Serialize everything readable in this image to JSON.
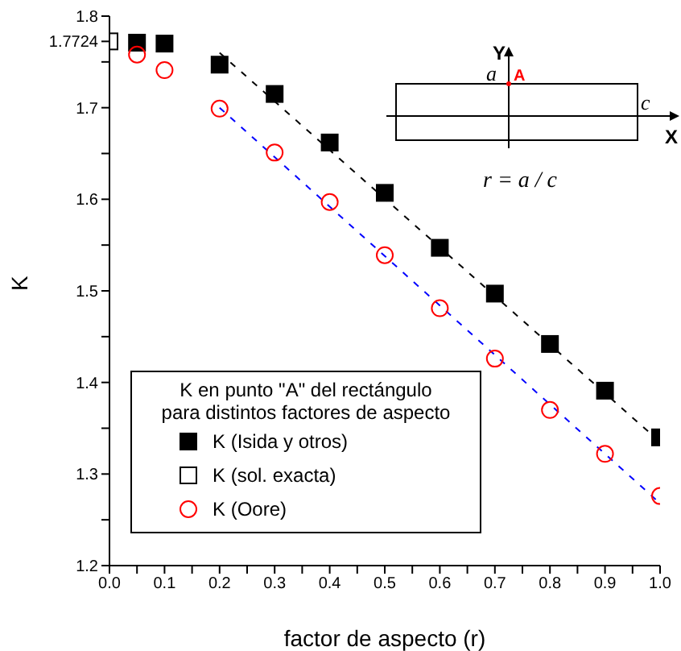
{
  "chart_data": {
    "type": "scatter",
    "xlabel": "factor de aspecto   (r)",
    "ylabel": "K",
    "legend_title": "K en punto \"A\" del rectángulo\npara distintos factores de aspecto",
    "legend": "bottom left",
    "grid": false,
    "xlim": [
      0,
      1.0
    ],
    "ylim": [
      1.2,
      1.8
    ],
    "xticks": [
      {
        "value": 0,
        "label": "0.0"
      },
      {
        "value": 0.05,
        "label": null
      },
      {
        "value": 0.1,
        "label": "0.1"
      },
      {
        "value": 0.15,
        "label": null
      },
      {
        "value": 0.2,
        "label": "0.2"
      },
      {
        "value": 0.25,
        "label": null
      },
      {
        "value": 0.3,
        "label": "0.3"
      },
      {
        "value": 0.35,
        "label": null
      },
      {
        "value": 0.4,
        "label": "0.4"
      },
      {
        "value": 0.45,
        "label": null
      },
      {
        "value": 0.5,
        "label": "0.5"
      },
      {
        "value": 0.55,
        "label": null
      },
      {
        "value": 0.6,
        "label": "0.6"
      },
      {
        "value": 0.65,
        "label": null
      },
      {
        "value": 0.7,
        "label": "0.7"
      },
      {
        "value": 0.75,
        "label": null
      },
      {
        "value": 0.8,
        "label": "0.8"
      },
      {
        "value": 0.85,
        "label": null
      },
      {
        "value": 0.9,
        "label": "0.9"
      },
      {
        "value": 0.95,
        "label": null
      },
      {
        "value": 1.0,
        "label": "1.0"
      }
    ],
    "yticks": [
      1.2,
      {
        "value": 1.25,
        "label": null
      },
      1.3,
      {
        "value": 1.35,
        "label": null
      },
      1.4,
      {
        "value": 1.45,
        "label": null
      },
      1.5,
      {
        "value": 1.55,
        "label": null
      },
      1.6,
      {
        "value": 1.65,
        "label": null
      },
      1.7,
      {
        "value": 1.75,
        "label": null
      },
      {
        "value": 1.7724,
        "label": "1.7724"
      },
      1.8
    ],
    "annotations": [
      "Y",
      "X",
      "a",
      "A",
      "c",
      "r = a / c"
    ],
    "series": [
      {
        "name": "K (Isida y otros)",
        "marker": "square",
        "color": "#000000",
        "x": [
          0.05,
          0.1,
          0.2,
          0.3,
          0.4,
          0.5,
          0.6,
          0.7,
          0.8,
          0.9,
          1.0
        ],
        "values": [
          1.771,
          1.77,
          1.747,
          1.715,
          1.662,
          1.607,
          1.547,
          1.497,
          1.442,
          1.391,
          1.34
        ]
      },
      {
        "name": "K (sol. exacta)",
        "marker": "square",
        "color": "#000000",
        "x": [
          0
        ],
        "values": [
          1.7724
        ]
      },
      {
        "name": "K (Oore)",
        "marker": "circle",
        "color": "#ff0000",
        "x": [
          0.05,
          0.1,
          0.2,
          0.3,
          0.4,
          0.5,
          0.6,
          0.7,
          0.8,
          0.9,
          1.0
        ],
        "values": [
          1.758,
          1.741,
          1.699,
          1.651,
          1.597,
          1.539,
          1.481,
          1.426,
          1.37,
          1.322,
          1.276
        ]
      },
      {
        "type": "line",
        "marker": "none",
        "line_style": "dashed",
        "color": "#000000",
        "x": [
          0.2,
          1.0
        ],
        "values": [
          1.76,
          1.335
        ]
      },
      {
        "type": "line",
        "marker": "none",
        "line_style": "dashed",
        "color": "#0000ff",
        "x": [
          0.2,
          1.0
        ],
        "values": [
          1.7,
          1.268
        ]
      }
    ]
  }
}
